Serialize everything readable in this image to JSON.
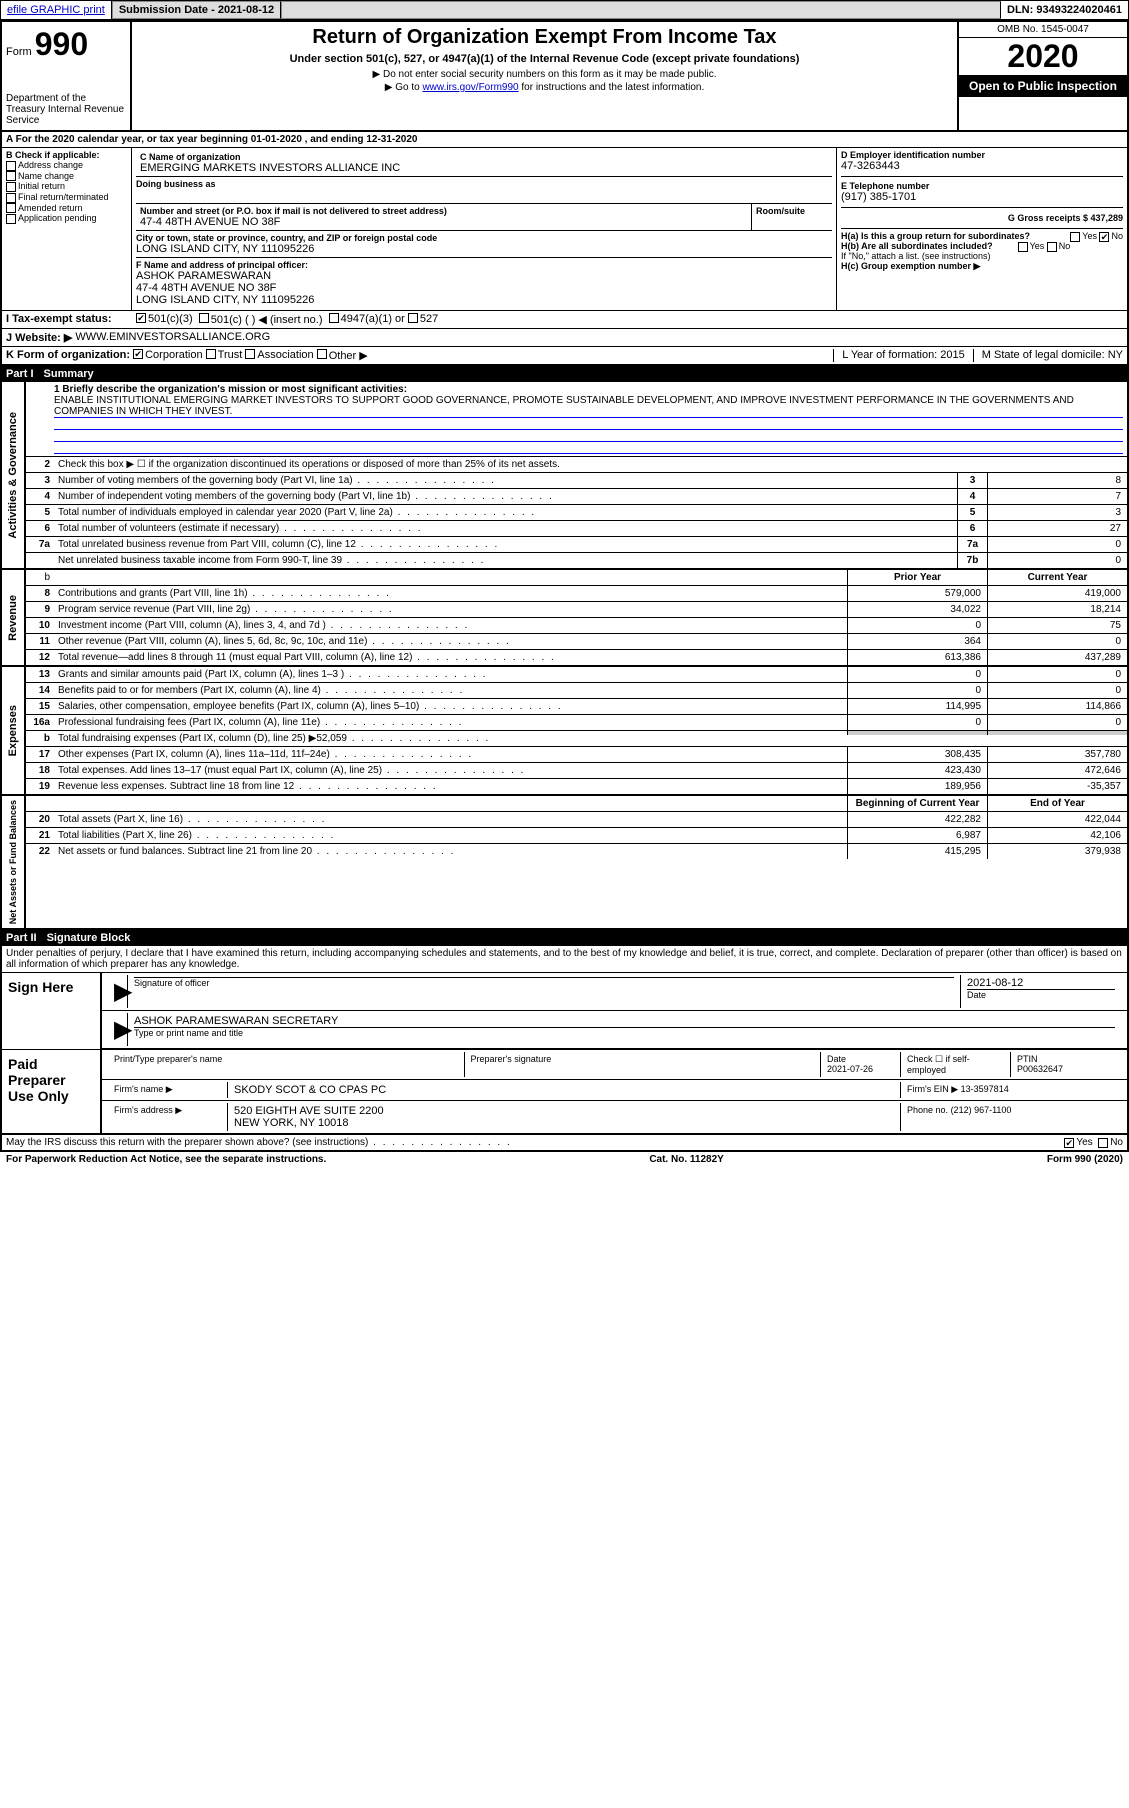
{
  "topbar": {
    "efile_label": "efile GRAPHIC print",
    "submission_label": "Submission Date - 2021-08-12",
    "dln_label": "DLN: 93493224020461"
  },
  "header": {
    "form_word": "Form",
    "form_num": "990",
    "dept": "Department of the Treasury\nInternal Revenue Service",
    "title": "Return of Organization Exempt From Income Tax",
    "sub1": "Under section 501(c), 527, or 4947(a)(1) of the Internal Revenue Code (except private foundations)",
    "sub2": "▶ Do not enter social security numbers on this form as it may be made public.",
    "sub3_pre": "▶ Go to ",
    "sub3_link": "www.irs.gov/Form990",
    "sub3_post": " for instructions and the latest information.",
    "omb": "OMB No. 1545-0047",
    "year": "2020",
    "open_public": "Open to Public Inspection"
  },
  "periodA": "A For the 2020 calendar year, or tax year beginning 01-01-2020    , and ending 12-31-2020",
  "colB": {
    "label": "B Check if applicable:",
    "items": [
      "Address change",
      "Name change",
      "Initial return",
      "Final return/terminated",
      "Amended return",
      "Application pending"
    ]
  },
  "colC": {
    "c_name_label": "C Name of organization",
    "c_name": "EMERGING MARKETS INVESTORS ALLIANCE INC",
    "dba_label": "Doing business as",
    "addr_label": "Number and street (or P.O. box if mail is not delivered to street address)",
    "room_label": "Room/suite",
    "addr": "47-4 48TH AVENUE NO 38F",
    "city_label": "City or town, state or province, country, and ZIP or foreign postal code",
    "city": "LONG ISLAND CITY, NY  111095226",
    "f_label": "F Name and address of principal officer:",
    "f_name": "ASHOK PARAMESWARAN",
    "f_addr1": "47-4 48TH AVENUE NO 38F",
    "f_addr2": "LONG ISLAND CITY, NY  111095226"
  },
  "colD": {
    "d_label": "D Employer identification number",
    "d_val": "47-3263443",
    "e_label": "E Telephone number",
    "e_val": "(917) 385-1701",
    "g_label": "G Gross receipts $ 437,289",
    "ha_label": "H(a)  Is this a group return for subordinates?",
    "hb_label": "H(b)  Are all subordinates included?",
    "hb_note": "If \"No,\" attach a list. (see instructions)",
    "hc_label": "H(c)  Group exemption number ▶",
    "yes": "Yes",
    "no": "No"
  },
  "rowI": {
    "label": "I   Tax-exempt status:",
    "c501c3": "501(c)(3)",
    "c501c": "501(c) (  ) ◀ (insert no.)",
    "c4947": "4947(a)(1) or",
    "c527": "527"
  },
  "rowJ": {
    "label": "J   Website: ▶",
    "val": "WWW.EMINVESTORSALLIANCE.ORG"
  },
  "rowK": {
    "label": "K Form of organization:",
    "corp": "Corporation",
    "trust": "Trust",
    "assoc": "Association",
    "other": "Other ▶",
    "l_label": "L Year of formation: 2015",
    "m_label": "M State of legal domicile: NY"
  },
  "part1": {
    "num": "Part I",
    "title": "Summary"
  },
  "activities": {
    "side": "Activities & Governance",
    "l1a": "1  Briefly describe the organization's mission or most significant activities:",
    "l1b": "ENABLE INSTITUTIONAL EMERGING MARKET INVESTORS TO SUPPORT GOOD GOVERNANCE, PROMOTE SUSTAINABLE DEVELOPMENT, AND IMPROVE INVESTMENT PERFORMANCE IN THE GOVERNMENTS AND COMPANIES IN WHICH THEY INVEST.",
    "l2": "Check this box ▶ ☐  if the organization discontinued its operations or disposed of more than 25% of its net assets.",
    "lines": [
      {
        "n": "3",
        "t": "Number of voting members of the governing body (Part VI, line 1a)",
        "b": "3",
        "v": "8"
      },
      {
        "n": "4",
        "t": "Number of independent voting members of the governing body (Part VI, line 1b)",
        "b": "4",
        "v": "7"
      },
      {
        "n": "5",
        "t": "Total number of individuals employed in calendar year 2020 (Part V, line 2a)",
        "b": "5",
        "v": "3"
      },
      {
        "n": "6",
        "t": "Total number of volunteers (estimate if necessary)",
        "b": "6",
        "v": "27"
      },
      {
        "n": "7a",
        "t": "Total unrelated business revenue from Part VIII, column (C), line 12",
        "b": "7a",
        "v": "0"
      },
      {
        "n": "",
        "t": "Net unrelated business taxable income from Form 990-T, line 39",
        "b": "7b",
        "v": "0"
      }
    ]
  },
  "revenue": {
    "side": "Revenue",
    "hdr_prior": "Prior Year",
    "hdr_current": "Current Year",
    "lines": [
      {
        "n": "8",
        "t": "Contributions and grants (Part VIII, line 1h)",
        "p": "579,000",
        "c": "419,000"
      },
      {
        "n": "9",
        "t": "Program service revenue (Part VIII, line 2g)",
        "p": "34,022",
        "c": "18,214"
      },
      {
        "n": "10",
        "t": "Investment income (Part VIII, column (A), lines 3, 4, and 7d )",
        "p": "0",
        "c": "75"
      },
      {
        "n": "11",
        "t": "Other revenue (Part VIII, column (A), lines 5, 6d, 8c, 9c, 10c, and 11e)",
        "p": "364",
        "c": "0"
      },
      {
        "n": "12",
        "t": "Total revenue—add lines 8 through 11 (must equal Part VIII, column (A), line 12)",
        "p": "613,386",
        "c": "437,289"
      }
    ]
  },
  "expenses": {
    "side": "Expenses",
    "lines": [
      {
        "n": "13",
        "t": "Grants and similar amounts paid (Part IX, column (A), lines 1–3 )",
        "p": "0",
        "c": "0"
      },
      {
        "n": "14",
        "t": "Benefits paid to or for members (Part IX, column (A), line 4)",
        "p": "0",
        "c": "0"
      },
      {
        "n": "15",
        "t": "Salaries, other compensation, employee benefits (Part IX, column (A), lines 5–10)",
        "p": "114,995",
        "c": "114,866"
      },
      {
        "n": "16a",
        "t": "Professional fundraising fees (Part IX, column (A), line 11e)",
        "p": "0",
        "c": "0"
      },
      {
        "n": "b",
        "t": "Total fundraising expenses (Part IX, column (D), line 25) ▶52,059",
        "p": "",
        "c": "",
        "shade": true
      },
      {
        "n": "17",
        "t": "Other expenses (Part IX, column (A), lines 11a–11d, 11f–24e)",
        "p": "308,435",
        "c": "357,780"
      },
      {
        "n": "18",
        "t": "Total expenses. Add lines 13–17 (must equal Part IX, column (A), line 25)",
        "p": "423,430",
        "c": "472,646"
      },
      {
        "n": "19",
        "t": "Revenue less expenses. Subtract line 18 from line 12",
        "p": "189,956",
        "c": "-35,357"
      }
    ]
  },
  "netassets": {
    "side": "Net Assets or Fund Balances",
    "hdr_beg": "Beginning of Current Year",
    "hdr_end": "End of Year",
    "lines": [
      {
        "n": "20",
        "t": "Total assets (Part X, line 16)",
        "p": "422,282",
        "c": "422,044"
      },
      {
        "n": "21",
        "t": "Total liabilities (Part X, line 26)",
        "p": "6,987",
        "c": "42,106"
      },
      {
        "n": "22",
        "t": "Net assets or fund balances. Subtract line 21 from line 20",
        "p": "415,295",
        "c": "379,938"
      }
    ]
  },
  "part2": {
    "num": "Part II",
    "title": "Signature Block"
  },
  "perjury": "Under penalties of perjury, I declare that I have examined this return, including accompanying schedules and statements, and to the best of my knowledge and belief, it is true, correct, and complete. Declaration of preparer (other than officer) is based on all information of which preparer has any knowledge.",
  "sign": {
    "left": "Sign Here",
    "sig_officer_label": "Signature of officer",
    "date_label": "Date",
    "date_val": "2021-08-12",
    "name_label": "Type or print name and title",
    "name_val": "ASHOK PARAMESWARAN  SECRETARY"
  },
  "paid": {
    "left": "Paid Preparer Use Only",
    "prep_name_label": "Print/Type preparer's name",
    "prep_sig_label": "Preparer's signature",
    "date_label": "Date",
    "date_val": "2021-07-26",
    "self_label": "Check ☐ if self-employed",
    "ptin_label": "PTIN",
    "ptin_val": "P00632647",
    "firm_name_label": "Firm's name    ▶",
    "firm_name": "SKODY SCOT & CO CPAS PC",
    "firm_ein_label": "Firm's EIN ▶",
    "firm_ein": "13-3597814",
    "firm_addr_label": "Firm's address ▶",
    "firm_addr1": "520 EIGHTH AVE SUITE 2200",
    "firm_addr2": "NEW YORK, NY  10018",
    "phone_label": "Phone no.",
    "phone": "(212) 967-1100"
  },
  "discuss": {
    "q": "May the IRS discuss this return with the preparer shown above? (see instructions)",
    "yes": "Yes",
    "no": "No"
  },
  "footer": {
    "left": "For Paperwork Reduction Act Notice, see the separate instructions.",
    "mid": "Cat. No. 11282Y",
    "right": "Form 990 (2020)"
  }
}
